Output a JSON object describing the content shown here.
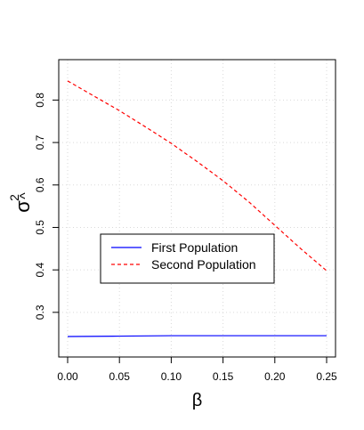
{
  "chart_data": {
    "type": "line",
    "xlabel": "β",
    "ylabel_symbol": "σ",
    "ylabel_hat": "^",
    "ylabel_exponent": "2",
    "xlim": [
      0,
      0.25
    ],
    "ylim": [
      0.22,
      0.87
    ],
    "x_ticks": [
      0.0,
      0.05,
      0.1,
      0.15,
      0.2,
      0.25
    ],
    "x_tick_labels": [
      "0.00",
      "0.05",
      "0.10",
      "0.15",
      "0.20",
      "0.25"
    ],
    "y_ticks": [
      0.3,
      0.4,
      0.5,
      0.6,
      0.7,
      0.8
    ],
    "y_tick_labels": [
      "0.3",
      "0.4",
      "0.5",
      "0.6",
      "0.7",
      "0.8"
    ],
    "grid": true,
    "legend_position": "center-left",
    "series": [
      {
        "name": "First Population",
        "color": "#0000ff",
        "dash": "solid",
        "x": [
          0.0,
          0.05,
          0.1,
          0.15,
          0.2,
          0.25
        ],
        "y": [
          0.243,
          0.244,
          0.245,
          0.245,
          0.245,
          0.245
        ]
      },
      {
        "name": "Second Population",
        "color": "#ff0000",
        "dash": "dashed",
        "x": [
          0.0,
          0.025,
          0.05,
          0.075,
          0.1,
          0.125,
          0.15,
          0.175,
          0.2,
          0.225,
          0.25
        ],
        "y": [
          0.845,
          0.81,
          0.775,
          0.737,
          0.698,
          0.655,
          0.61,
          0.56,
          0.505,
          0.45,
          0.398
        ]
      }
    ]
  }
}
